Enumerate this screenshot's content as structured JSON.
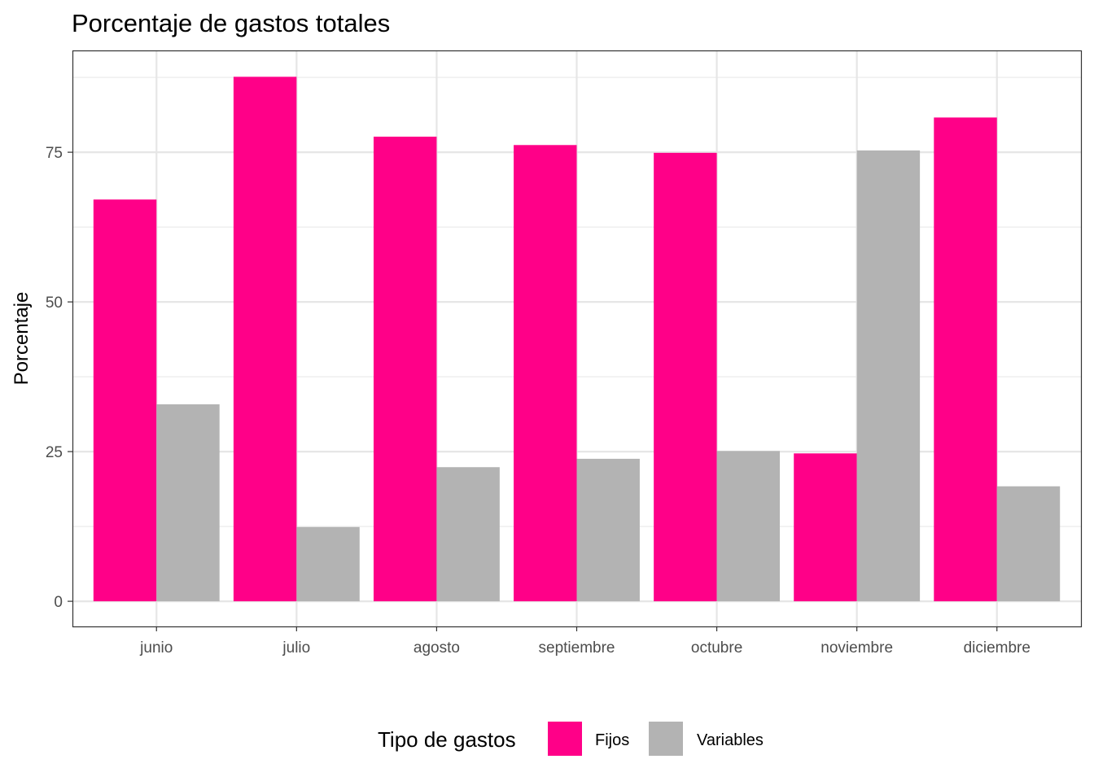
{
  "chart_data": {
    "type": "bar",
    "title": "Porcentaje de gastos totales",
    "xlabel": "",
    "ylabel": "Porcentaje",
    "categories": [
      "junio",
      "julio",
      "agosto",
      "septiembre",
      "octubre",
      "noviembre",
      "diciembre"
    ],
    "series": [
      {
        "name": "Fijos",
        "color": "#FF0088",
        "values": [
          67.1,
          87.6,
          77.6,
          76.2,
          74.9,
          24.7,
          80.8
        ]
      },
      {
        "name": "Variables",
        "color": "#B3B3B3",
        "values": [
          32.9,
          12.4,
          22.4,
          23.8,
          25.1,
          75.3,
          19.2
        ]
      }
    ],
    "yticks": [
      0,
      25,
      50,
      75
    ],
    "ytick_labels": [
      "0",
      "25",
      "50",
      "75"
    ],
    "ylim": [
      -4.2,
      92
    ],
    "grid": true,
    "legend": {
      "title": "Tipo de gastos",
      "position": "bottom"
    }
  }
}
